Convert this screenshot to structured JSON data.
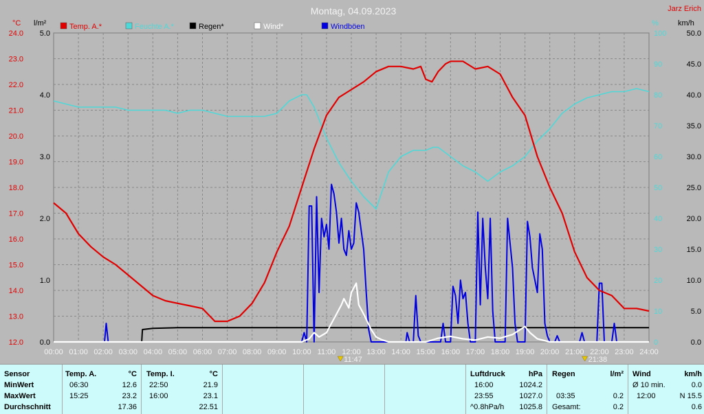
{
  "header": {
    "title": "Montag, 04.09.2023",
    "author": "Jarz Erich",
    "unit_left_temp": "°C",
    "unit_left_rain": "l/m²",
    "unit_right_hum": "%",
    "unit_right_wind": "km/h"
  },
  "legend": [
    {
      "label": "Temp. A.*",
      "color": "#e00000"
    },
    {
      "label": "Feuchte A.*",
      "color": "#4fd8d8"
    },
    {
      "label": "Regen*",
      "color": "#000000"
    },
    {
      "label": "Wind*",
      "color": "#ffffff"
    },
    {
      "label": "Windböen",
      "color": "#0000e0"
    }
  ],
  "markers": {
    "sunrise": "11:47",
    "sunset": "21:38"
  },
  "colors": {
    "background": "#b9b9b9",
    "grid": "#888888",
    "temp": "#e00000",
    "humidity": "#4fd8d8",
    "rain": "#000000",
    "wind": "#ffffff",
    "gust": "#0000e0",
    "panel": "#cdfbfb",
    "temp_axis": "#e00000"
  },
  "chart_data": {
    "type": "line",
    "x_label_ticks": [
      "00:00",
      "01:00",
      "02:00",
      "03:00",
      "04:00",
      "05:00",
      "06:00",
      "07:00",
      "08:00",
      "09:00",
      "10:00",
      "11:00",
      "12:00",
      "13:00",
      "14:00",
      "15:00",
      "16:00",
      "17:00",
      "18:00",
      "19:00",
      "20:00",
      "21:00",
      "22:00",
      "23:00",
      "24:00"
    ],
    "xlim": [
      0,
      24
    ],
    "axes": {
      "temp": {
        "ylim": [
          12.0,
          24.0
        ],
        "ticks": [
          "12.0",
          "13.0",
          "14.0",
          "15.0",
          "16.0",
          "17.0",
          "18.0",
          "19.0",
          "20.0",
          "21.0",
          "22.0",
          "23.0",
          "24.0"
        ]
      },
      "rain": {
        "ylim": [
          0.0,
          5.0
        ],
        "ticks": [
          "0.0",
          "1.0",
          "2.0",
          "3.0",
          "4.0",
          "5.0"
        ]
      },
      "humidity": {
        "ylim": [
          0,
          100
        ],
        "ticks": [
          "0",
          "10",
          "20",
          "30",
          "40",
          "50",
          "60",
          "70",
          "80",
          "90",
          "100"
        ]
      },
      "wind": {
        "ylim": [
          0.0,
          50.0
        ],
        "ticks": [
          "0.0",
          "5.0",
          "10.0",
          "15.0",
          "20.0",
          "25.0",
          "30.0",
          "35.0",
          "40.0",
          "45.0",
          "50.0"
        ]
      }
    },
    "series": [
      {
        "name": "Temp. A.*",
        "axis": "temp",
        "points": [
          [
            0,
            17.4
          ],
          [
            0.5,
            17.0
          ],
          [
            1,
            16.2
          ],
          [
            1.5,
            15.7
          ],
          [
            2,
            15.3
          ],
          [
            2.5,
            15.0
          ],
          [
            3,
            14.6
          ],
          [
            3.5,
            14.2
          ],
          [
            4,
            13.8
          ],
          [
            4.5,
            13.6
          ],
          [
            5,
            13.5
          ],
          [
            5.5,
            13.4
          ],
          [
            6,
            13.3
          ],
          [
            6.3,
            13.0
          ],
          [
            6.5,
            12.8
          ],
          [
            7,
            12.8
          ],
          [
            7.5,
            13.0
          ],
          [
            8,
            13.5
          ],
          [
            8.5,
            14.3
          ],
          [
            9,
            15.5
          ],
          [
            9.5,
            16.5
          ],
          [
            10,
            18.0
          ],
          [
            10.5,
            19.5
          ],
          [
            11,
            20.8
          ],
          [
            11.5,
            21.5
          ],
          [
            12,
            21.8
          ],
          [
            12.5,
            22.1
          ],
          [
            13,
            22.5
          ],
          [
            13.5,
            22.7
          ],
          [
            14,
            22.7
          ],
          [
            14.5,
            22.6
          ],
          [
            14.8,
            22.7
          ],
          [
            15,
            22.2
          ],
          [
            15.25,
            22.1
          ],
          [
            15.5,
            22.5
          ],
          [
            15.8,
            22.8
          ],
          [
            16,
            22.9
          ],
          [
            16.5,
            22.9
          ],
          [
            17,
            22.6
          ],
          [
            17.5,
            22.7
          ],
          [
            18,
            22.4
          ],
          [
            18.5,
            21.5
          ],
          [
            19,
            20.8
          ],
          [
            19.5,
            19.2
          ],
          [
            20,
            18.0
          ],
          [
            20.5,
            17.0
          ],
          [
            21,
            15.5
          ],
          [
            21.5,
            14.5
          ],
          [
            22,
            14.0
          ],
          [
            22.5,
            13.8
          ],
          [
            23,
            13.3
          ],
          [
            23.5,
            13.3
          ],
          [
            24,
            13.2
          ]
        ]
      },
      {
        "name": "Feuchte A.*",
        "axis": "humidity",
        "points": [
          [
            0,
            78
          ],
          [
            0.5,
            77
          ],
          [
            1,
            76
          ],
          [
            1.5,
            76
          ],
          [
            2,
            76
          ],
          [
            2.5,
            76
          ],
          [
            3,
            75
          ],
          [
            3.5,
            75
          ],
          [
            4,
            75
          ],
          [
            4.5,
            75
          ],
          [
            5,
            74
          ],
          [
            5.5,
            75
          ],
          [
            6,
            75
          ],
          [
            6.5,
            74
          ],
          [
            7,
            73
          ],
          [
            7.5,
            73
          ],
          [
            8,
            73
          ],
          [
            8.5,
            73
          ],
          [
            9,
            74
          ],
          [
            9.5,
            78
          ],
          [
            10,
            80
          ],
          [
            10.2,
            80
          ],
          [
            10.5,
            76
          ],
          [
            11,
            66
          ],
          [
            11.5,
            58
          ],
          [
            12,
            52
          ],
          [
            12.5,
            47
          ],
          [
            13,
            43
          ],
          [
            13.5,
            55
          ],
          [
            14,
            60
          ],
          [
            14.5,
            62
          ],
          [
            15,
            62
          ],
          [
            15.3,
            63
          ],
          [
            15.5,
            63
          ],
          [
            16,
            60
          ],
          [
            16.5,
            57
          ],
          [
            17,
            55
          ],
          [
            17.5,
            52
          ],
          [
            18,
            55
          ],
          [
            18.5,
            57
          ],
          [
            19,
            60
          ],
          [
            19.5,
            65
          ],
          [
            20,
            69
          ],
          [
            20.5,
            74
          ],
          [
            21,
            77
          ],
          [
            21.5,
            79
          ],
          [
            22,
            80
          ],
          [
            22.5,
            81
          ],
          [
            23,
            81
          ],
          [
            23.5,
            82
          ],
          [
            24,
            81
          ]
        ]
      },
      {
        "name": "Regen*",
        "axis": "rain",
        "points": [
          [
            0,
            0
          ],
          [
            3.55,
            0
          ],
          [
            3.58,
            0.2
          ],
          [
            4,
            0.22
          ],
          [
            5,
            0.23
          ],
          [
            6,
            0.23
          ],
          [
            7,
            0.23
          ],
          [
            8,
            0.23
          ],
          [
            10,
            0.23
          ],
          [
            12,
            0.23
          ],
          [
            15,
            0.23
          ],
          [
            18,
            0.23
          ],
          [
            20,
            0.23
          ],
          [
            22,
            0.23
          ],
          [
            24,
            0.23
          ]
        ]
      },
      {
        "name": "Wind*",
        "axis": "wind",
        "points": [
          [
            0,
            0
          ],
          [
            10,
            0
          ],
          [
            10.3,
            0.5
          ],
          [
            10.5,
            1.5
          ],
          [
            10.7,
            0.8
          ],
          [
            11,
            1.5
          ],
          [
            11.2,
            3
          ],
          [
            11.4,
            4.5
          ],
          [
            11.6,
            6
          ],
          [
            11.7,
            7
          ],
          [
            11.9,
            5.5
          ],
          [
            12,
            8
          ],
          [
            12.2,
            9.5
          ],
          [
            12.3,
            6
          ],
          [
            12.5,
            4.5
          ],
          [
            12.8,
            2
          ],
          [
            13,
            0.8
          ],
          [
            13.2,
            0.4
          ],
          [
            13.5,
            0
          ],
          [
            15,
            0
          ],
          [
            15.5,
            0.6
          ],
          [
            16,
            0.9
          ],
          [
            16.5,
            0.5
          ],
          [
            17,
            0.3
          ],
          [
            17.5,
            0.8
          ],
          [
            18,
            0.6
          ],
          [
            18.5,
            1.2
          ],
          [
            19,
            2.5
          ],
          [
            19.2,
            1.5
          ],
          [
            19.5,
            0.5
          ],
          [
            20,
            0
          ],
          [
            24,
            0
          ]
        ]
      },
      {
        "name": "Windböen",
        "axis": "wind",
        "points": [
          [
            0,
            0
          ],
          [
            2.05,
            0
          ],
          [
            2.12,
            3
          ],
          [
            2.2,
            0
          ],
          [
            10,
            0
          ],
          [
            10.1,
            1.5
          ],
          [
            10.2,
            0
          ],
          [
            10.3,
            22
          ],
          [
            10.4,
            22
          ],
          [
            10.5,
            0
          ],
          [
            10.6,
            23.5
          ],
          [
            10.7,
            8
          ],
          [
            10.8,
            20
          ],
          [
            10.9,
            17
          ],
          [
            11,
            19
          ],
          [
            11.1,
            15
          ],
          [
            11.2,
            25.5
          ],
          [
            11.3,
            24
          ],
          [
            11.4,
            21
          ],
          [
            11.5,
            16
          ],
          [
            11.6,
            20
          ],
          [
            11.7,
            15
          ],
          [
            11.8,
            14
          ],
          [
            11.9,
            18
          ],
          [
            12,
            15
          ],
          [
            12.1,
            16
          ],
          [
            12.2,
            22.5
          ],
          [
            12.3,
            21
          ],
          [
            12.4,
            18
          ],
          [
            12.5,
            15
          ],
          [
            12.6,
            8
          ],
          [
            12.7,
            2
          ],
          [
            12.8,
            0
          ],
          [
            14.2,
            0
          ],
          [
            14.25,
            1.5
          ],
          [
            14.35,
            0
          ],
          [
            14.5,
            0
          ],
          [
            14.6,
            7.5
          ],
          [
            14.7,
            1
          ],
          [
            14.8,
            0
          ],
          [
            15.6,
            0
          ],
          [
            15.7,
            3
          ],
          [
            15.8,
            0
          ],
          [
            16,
            0
          ],
          [
            16.1,
            9
          ],
          [
            16.2,
            7.5
          ],
          [
            16.3,
            3
          ],
          [
            16.4,
            10
          ],
          [
            16.5,
            7
          ],
          [
            16.6,
            8
          ],
          [
            16.7,
            3
          ],
          [
            16.8,
            0
          ],
          [
            17,
            0
          ],
          [
            17.1,
            21
          ],
          [
            17.2,
            6
          ],
          [
            17.3,
            20
          ],
          [
            17.4,
            12
          ],
          [
            17.5,
            7
          ],
          [
            17.6,
            20
          ],
          [
            17.7,
            5
          ],
          [
            17.8,
            0
          ],
          [
            18.2,
            0
          ],
          [
            18.3,
            20
          ],
          [
            18.4,
            16
          ],
          [
            18.5,
            12
          ],
          [
            18.6,
            3
          ],
          [
            18.7,
            0
          ],
          [
            19,
            0
          ],
          [
            19.1,
            19.5
          ],
          [
            19.2,
            17
          ],
          [
            19.3,
            12
          ],
          [
            19.4,
            10
          ],
          [
            19.5,
            8
          ],
          [
            19.6,
            17.5
          ],
          [
            19.7,
            15
          ],
          [
            19.8,
            3
          ],
          [
            19.9,
            1
          ],
          [
            20,
            0
          ],
          [
            20.2,
            0
          ],
          [
            20.3,
            1
          ],
          [
            20.4,
            0
          ],
          [
            21.2,
            0
          ],
          [
            21.3,
            1.5
          ],
          [
            21.4,
            0
          ],
          [
            21.9,
            0
          ],
          [
            22,
            9.5
          ],
          [
            22.1,
            9.5
          ],
          [
            22.2,
            0
          ],
          [
            22.5,
            0
          ],
          [
            22.6,
            3
          ],
          [
            22.7,
            0
          ],
          [
            24,
            0
          ]
        ]
      }
    ]
  },
  "stats": {
    "sensor": {
      "header": "Sensor",
      "rows": [
        "MinWert",
        "MaxWert",
        "Durchschnitt"
      ]
    },
    "temp_a": {
      "header": "Temp. A.",
      "unit": "°C",
      "min_time": "06:30",
      "min_val": "12.6",
      "max_time": "15:25",
      "max_val": "23.2",
      "avg": "17.36"
    },
    "temp_i": {
      "header": "Temp. I.",
      "unit": "°C",
      "min_time": "22:50",
      "min_val": "21.9",
      "max_time": "16:00",
      "max_val": "23.1",
      "avg": "22.51"
    },
    "pressure": {
      "header": "Luftdruck",
      "unit": "hPa",
      "min_time": "16:00",
      "min_val": "1024.2",
      "max_time": "23:55",
      "max_val": "1027.0",
      "trend": "^0.8hPa/h",
      "avg": "1025.8"
    },
    "rain": {
      "header": "Regen",
      "unit": "l/m²",
      "max_time": "03:35",
      "max_val": "0.2",
      "total_label": "Gesamt:",
      "total_val": "0.2"
    },
    "wind": {
      "header": "Wind",
      "unit": "km/h",
      "avg_label": "Ø 10 min.",
      "avg_val": "0.0",
      "max_time": "12:00",
      "max_val": "N 15.5",
      "day_avg": "0.6"
    }
  }
}
